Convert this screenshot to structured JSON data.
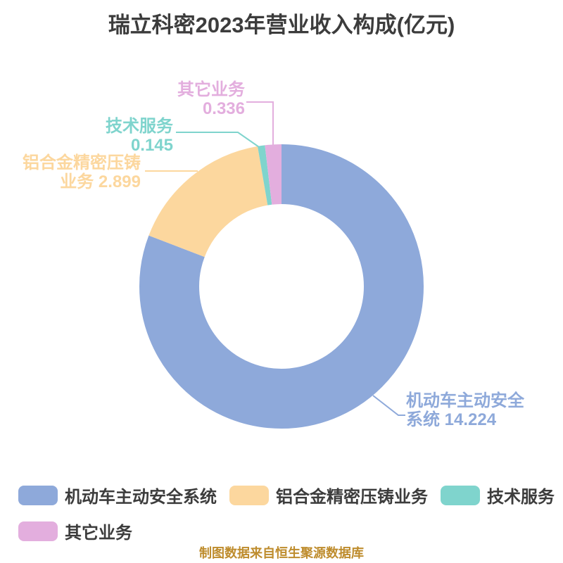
{
  "title": "瑞立科密2023年营业收入构成(亿元)",
  "chart_data": {
    "type": "pie",
    "subtype": "donut",
    "title": "瑞立科密2023年营业收入构成(亿元)",
    "unit": "亿元",
    "total": 17.604,
    "start_angle": "12-oclock",
    "direction": "clockwise",
    "inner_radius_ratio": 0.58,
    "legend_position": "bottom",
    "segments": [
      {
        "name": "机动车主动安全系统",
        "value": 14.224,
        "color": "#8EA9DA"
      },
      {
        "name": "铝合金精密压铸业务",
        "value": 2.899,
        "color": "#FCD79E"
      },
      {
        "name": "技术服务",
        "value": 0.145,
        "color": "#7FD4CD"
      },
      {
        "name": "其它业务",
        "value": 0.336,
        "color": "#E3AEDE"
      }
    ]
  },
  "slice_labels": {
    "motor": {
      "line1": "机动车主动安全",
      "line2": "系统 14.224"
    },
    "aluminum": {
      "line1": "铝合金精密压铸",
      "line2": "业务 2.899"
    },
    "tech": {
      "line1": "技术服务",
      "line2": "0.145"
    },
    "other": {
      "line1": "其它业务",
      "line2": "0.336"
    }
  },
  "footer": "制图数据来自恒生聚源数据库",
  "colors": {
    "background": "#FFFFFF",
    "title_text": "#3C3C3C",
    "legend_text": "#3C3C3C",
    "footer_text": "#BE8C2D"
  }
}
